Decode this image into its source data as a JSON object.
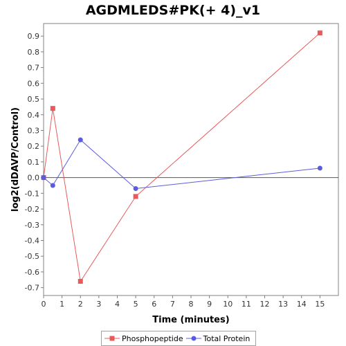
{
  "chart_data": {
    "type": "line",
    "title": "AGDMLEDS#PK(+ 4)_v1",
    "xlabel": "Time (minutes)",
    "ylabel": "log2(dDAVP/Control)",
    "xlim": [
      0,
      16
    ],
    "ylim": [
      -0.75,
      0.98
    ],
    "x_ticks": [
      0,
      1,
      2,
      3,
      4,
      5,
      6,
      7,
      8,
      9,
      10,
      11,
      12,
      13,
      14,
      15
    ],
    "y_ticks": [
      -0.7,
      -0.6,
      -0.5,
      -0.4,
      -0.3,
      -0.2,
      -0.1,
      0.0,
      0.1,
      0.2,
      0.3,
      0.4,
      0.5,
      0.6,
      0.7,
      0.8,
      0.9
    ],
    "zero_line": true,
    "grid": false,
    "legend_position": "bottom",
    "series": [
      {
        "name": "Phosphopeptide",
        "color": "#e8595a",
        "marker": "square",
        "x": [
          0,
          0.5,
          2,
          5,
          15
        ],
        "y": [
          0.0,
          0.44,
          -0.66,
          -0.12,
          0.92
        ]
      },
      {
        "name": "Total Protein",
        "color": "#5b5bdf",
        "marker": "circle",
        "x": [
          0,
          0.5,
          2,
          5,
          15
        ],
        "y": [
          0.0,
          -0.05,
          0.24,
          -0.07,
          0.06
        ]
      }
    ]
  }
}
